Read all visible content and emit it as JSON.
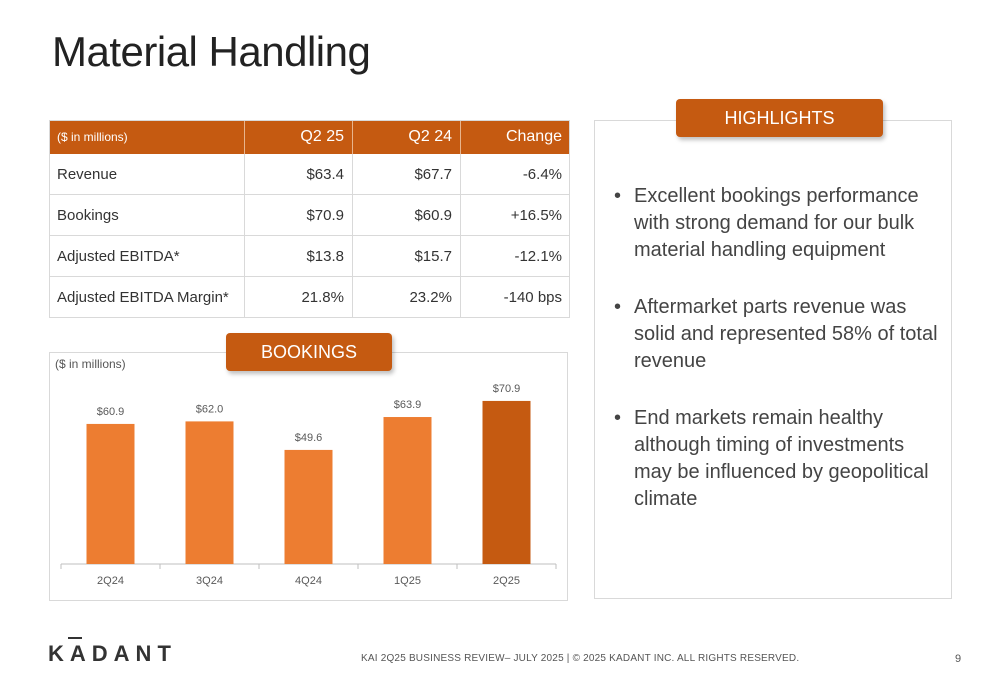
{
  "title": "Material Handling",
  "table": {
    "headers": [
      "($ in millions)",
      "Q2 25",
      "Q2 24",
      "Change"
    ],
    "rows": [
      [
        "Revenue",
        "$63.4",
        "$67.7",
        "-6.4%"
      ],
      [
        "Bookings",
        "$70.9",
        "$60.9",
        "+16.5%"
      ],
      [
        "Adjusted EBITDA*",
        "$13.8",
        "$15.7",
        "-12.1%"
      ],
      [
        "Adjusted EBITDA Margin*",
        "21.8%",
        "23.2%",
        "-140 bps"
      ]
    ]
  },
  "bookings": {
    "label": "BOOKINGS",
    "unit": "($ in millions)"
  },
  "chart_data": {
    "type": "bar",
    "categories": [
      "2Q24",
      "3Q24",
      "4Q24",
      "1Q25",
      "2Q25"
    ],
    "values": [
      60.9,
      62.0,
      49.6,
      63.9,
      70.9
    ],
    "data_labels": [
      "$60.9",
      "$62.0",
      "$49.6",
      "$63.9",
      "$70.9"
    ],
    "title": "",
    "xlabel": "",
    "ylabel": "($ in millions)",
    "ylim": [
      0,
      80
    ],
    "grid": false,
    "bar_color": "#ed7d31",
    "highlight_color": "#c55a11",
    "highlight_index": 4
  },
  "highlights": {
    "label": "HIGHLIGHTS",
    "items": [
      "Excellent bookings performance with strong demand for our bulk material handling equipment",
      "Aftermarket parts revenue was solid and represented 58% of total revenue",
      "End markets remain healthy although timing of investments may be influenced by geopolitical climate"
    ]
  },
  "footer": {
    "logo": "KADANT",
    "text": "KAI 2Q25 BUSINESS REVIEW– JULY 2025  |  © 2025 KADANT INC. ALL RIGHTS RESERVED.",
    "page": "9"
  },
  "colors": {
    "accent": "#c55a11",
    "bar": "#ed7d31"
  }
}
